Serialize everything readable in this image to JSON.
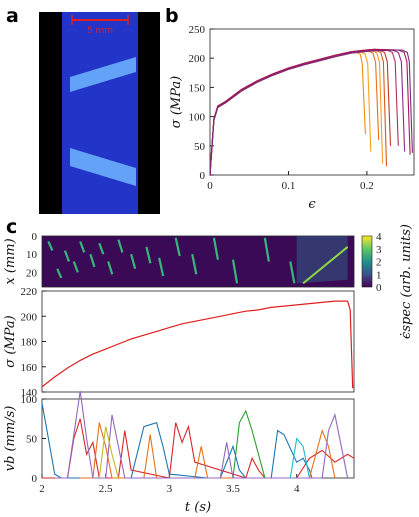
{
  "panels": {
    "a": "a",
    "b": "b",
    "c": "c"
  },
  "image_a": {
    "scale_label": "5 mm",
    "colors": {
      "bg": "#000000",
      "specimen": "#2235c8",
      "band": "#6fb6ff",
      "scale": "#e02020"
    }
  },
  "chart_data": [
    {
      "id": "b",
      "type": "line",
      "xlabel": "ϵ",
      "ylabel": "σ (MPa)",
      "xlim": [
        0,
        0.26
      ],
      "ylim": [
        0,
        250
      ],
      "xticks": [
        0,
        0.1,
        0.2
      ],
      "yticks": [
        0,
        50,
        100,
        150,
        200,
        250
      ],
      "curve": {
        "x": [
          0,
          0.002,
          0.005,
          0.01,
          0.02,
          0.04,
          0.06,
          0.08,
          0.1,
          0.12,
          0.14,
          0.16,
          0.18,
          0.2,
          0.21
        ],
        "y": [
          0,
          40,
          95,
          117,
          125,
          145,
          160,
          172,
          182,
          190,
          197,
          204,
          210,
          213,
          214
        ]
      },
      "series": [
        {
          "color": "#f28c0f",
          "end": 0.185,
          "fail": 0.198,
          "drop": 70
        },
        {
          "color": "#f7a31c",
          "end": 0.19,
          "fail": 0.205,
          "drop": 40
        },
        {
          "color": "#e8701a",
          "end": 0.2,
          "fail": 0.215,
          "drop": 60
        },
        {
          "color": "#ff9a28",
          "end": 0.205,
          "fail": 0.22,
          "drop": 20
        },
        {
          "color": "#d95a1a",
          "end": 0.21,
          "fail": 0.225,
          "drop": 15
        },
        {
          "color": "#c0392b",
          "end": 0.215,
          "fail": 0.23,
          "drop": 50
        },
        {
          "color": "#b03060",
          "end": 0.225,
          "fail": 0.24,
          "drop": 50
        },
        {
          "color": "#8b2a8b",
          "end": 0.232,
          "fail": 0.248,
          "drop": 40
        },
        {
          "color": "#a8155a",
          "end": 0.24,
          "fail": 0.255,
          "drop": 35
        },
        {
          "color": "#7a2a7a",
          "end": 0.245,
          "fail": 0.258,
          "drop": 38
        }
      ]
    },
    {
      "id": "c-map",
      "type": "heatmap",
      "ylabel": "x (mm)",
      "colorbar_label": "ϵ̇spec (arb. units)",
      "xlim": [
        2,
        4.45
      ],
      "ylim": [
        0,
        28
      ],
      "yticks": [
        0,
        10,
        20
      ],
      "colorbar_ticks": [
        0,
        1,
        2,
        3,
        4
      ],
      "bands": [
        {
          "t": 2.05,
          "x0": 3,
          "x1": 8
        },
        {
          "t": 2.12,
          "x0": 18,
          "x1": 23
        },
        {
          "t": 2.18,
          "x0": 8,
          "x1": 14
        },
        {
          "t": 2.25,
          "x0": 14,
          "x1": 20
        },
        {
          "t": 2.3,
          "x0": 3,
          "x1": 9
        },
        {
          "t": 2.38,
          "x0": 10,
          "x1": 17
        },
        {
          "t": 2.45,
          "x0": 4,
          "x1": 10
        },
        {
          "t": 2.52,
          "x0": 14,
          "x1": 21
        },
        {
          "t": 2.6,
          "x0": 2,
          "x1": 9
        },
        {
          "t": 2.7,
          "x0": 10,
          "x1": 18
        },
        {
          "t": 2.82,
          "x0": 6,
          "x1": 15
        },
        {
          "t": 2.92,
          "x0": 12,
          "x1": 22
        },
        {
          "t": 3.05,
          "x0": 1,
          "x1": 11
        },
        {
          "t": 3.18,
          "x0": 10,
          "x1": 21
        },
        {
          "t": 3.35,
          "x0": 1,
          "x1": 13
        },
        {
          "t": 3.5,
          "x0": 13,
          "x1": 26
        },
        {
          "t": 3.75,
          "x0": 1,
          "x1": 14
        },
        {
          "t": 3.95,
          "x0": 14,
          "x1": 26
        }
      ]
    },
    {
      "id": "c-stress",
      "type": "line",
      "ylabel": "σ (MPa)",
      "xlim": [
        2,
        4.45
      ],
      "ylim": [
        140,
        220
      ],
      "yticks": [
        140,
        160,
        180,
        200,
        220
      ],
      "x": [
        2,
        2.1,
        2.2,
        2.3,
        2.4,
        2.5,
        2.6,
        2.7,
        2.8,
        2.9,
        3.0,
        3.1,
        3.2,
        3.3,
        3.4,
        3.5,
        3.6,
        3.7,
        3.8,
        3.9,
        4.0,
        4.1,
        4.2,
        4.3,
        4.4,
        4.42,
        4.44
      ],
      "y": [
        144,
        152,
        159,
        165,
        170,
        174,
        178,
        182,
        185,
        188,
        191,
        194,
        196,
        198,
        200,
        202,
        204,
        205,
        207,
        208,
        209,
        210,
        211,
        212,
        212,
        205,
        143
      ]
    },
    {
      "id": "c-velocity",
      "type": "line",
      "xlabel": "t (s)",
      "ylabel": "vb (mm/s)",
      "xlim": [
        2,
        4.45
      ],
      "ylim": [
        0,
        100
      ],
      "xticks": [
        2,
        2.5,
        3,
        3.5,
        4
      ],
      "yticks": [
        0,
        50,
        100
      ],
      "series": [
        {
          "color": "#1f77b4",
          "x": [
            2,
            2.05,
            2.1,
            2.15,
            2.2,
            2.7,
            2.8,
            2.9,
            2.95,
            3.0,
            3.3,
            3.4,
            3.5,
            3.55,
            3.6,
            3.8,
            3.85,
            3.9,
            4.0,
            4.05,
            4.1,
            4.12
          ],
          "y": [
            95,
            50,
            5,
            0,
            0,
            0,
            65,
            70,
            40,
            5,
            0,
            0,
            40,
            10,
            0,
            0,
            60,
            55,
            20,
            25,
            10,
            0
          ]
        },
        {
          "color": "#d62728",
          "x": [
            2,
            2.2,
            2.25,
            2.3,
            2.35,
            2.4,
            2.45,
            2.6,
            2.65,
            2.7,
            3.0,
            3.05,
            3.1,
            3.15,
            3.2,
            3.6,
            3.65,
            3.7,
            3.75,
            4.0,
            4.1,
            4.2,
            4.3,
            4.4,
            4.45
          ],
          "y": [
            0,
            0,
            50,
            75,
            30,
            45,
            0,
            0,
            60,
            10,
            0,
            70,
            45,
            65,
            20,
            0,
            25,
            10,
            0,
            0,
            25,
            35,
            20,
            30,
            25
          ]
        },
        {
          "color": "#e8701a",
          "x": [
            2.3,
            2.4,
            2.45,
            2.5,
            2.55,
            2.8,
            2.85,
            2.9,
            3.2,
            3.25,
            3.3,
            4.1,
            4.15,
            4.2,
            4.25,
            4.3
          ],
          "y": [
            0,
            0,
            70,
            40,
            0,
            0,
            55,
            0,
            0,
            40,
            0,
            0,
            30,
            60,
            40,
            0
          ]
        },
        {
          "color": "#9467bd",
          "x": [
            2.1,
            2.2,
            2.3,
            2.35,
            2.4,
            2.5,
            2.55,
            2.6,
            2.65,
            3.4,
            3.45,
            3.5,
            4.2,
            4.25,
            4.3,
            4.35,
            4.4
          ],
          "y": [
            0,
            0,
            110,
            50,
            0,
            0,
            80,
            40,
            0,
            0,
            45,
            0,
            0,
            60,
            80,
            40,
            0
          ]
        },
        {
          "color": "#2ca02c",
          "x": [
            3.5,
            3.55,
            3.6,
            3.65,
            3.7,
            3.75
          ],
          "y": [
            0,
            70,
            85,
            60,
            30,
            0
          ]
        },
        {
          "color": "#bcbd22",
          "x": [
            2.45,
            2.5,
            2.55,
            2.6
          ],
          "y": [
            0,
            65,
            30,
            0
          ]
        },
        {
          "color": "#17becf",
          "x": [
            3.95,
            4.0,
            4.05,
            4.1
          ],
          "y": [
            0,
            50,
            40,
            0
          ]
        }
      ]
    }
  ]
}
